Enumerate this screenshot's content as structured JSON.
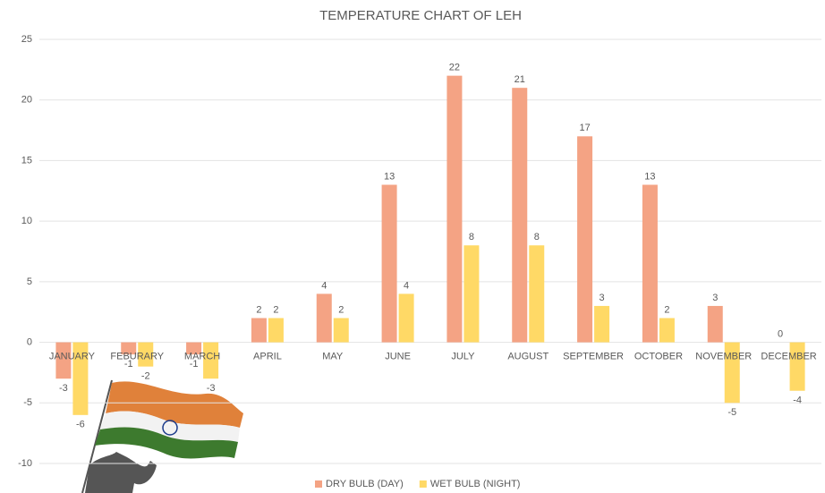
{
  "chart_data": {
    "type": "bar",
    "title": "TEMPERATURE CHART OF LEH",
    "categories": [
      "JANUARY",
      "FEBURARY",
      "MARCH",
      "APRIL",
      "MAY",
      "JUNE",
      "JULY",
      "AUGUST",
      "SEPTEMBER",
      "OCTOBER",
      "NOVEMBER",
      "DECEMBER"
    ],
    "series": [
      {
        "name": "DRY BULB (DAY)",
        "color": "#f4a384",
        "values": [
          -3,
          -1,
          -1,
          2,
          4,
          13,
          22,
          21,
          17,
          13,
          3,
          0
        ]
      },
      {
        "name": "WET BULB (NIGHT)",
        "color": "#ffd966",
        "values": [
          -6,
          -2,
          -3,
          2,
          2,
          4,
          8,
          8,
          3,
          2,
          -5,
          -4
        ]
      }
    ],
    "ylim": [
      -10,
      25
    ],
    "yticks": [
      -10,
      -5,
      0,
      5,
      10,
      15,
      20,
      25
    ],
    "grid": true,
    "legend": "bottom"
  }
}
